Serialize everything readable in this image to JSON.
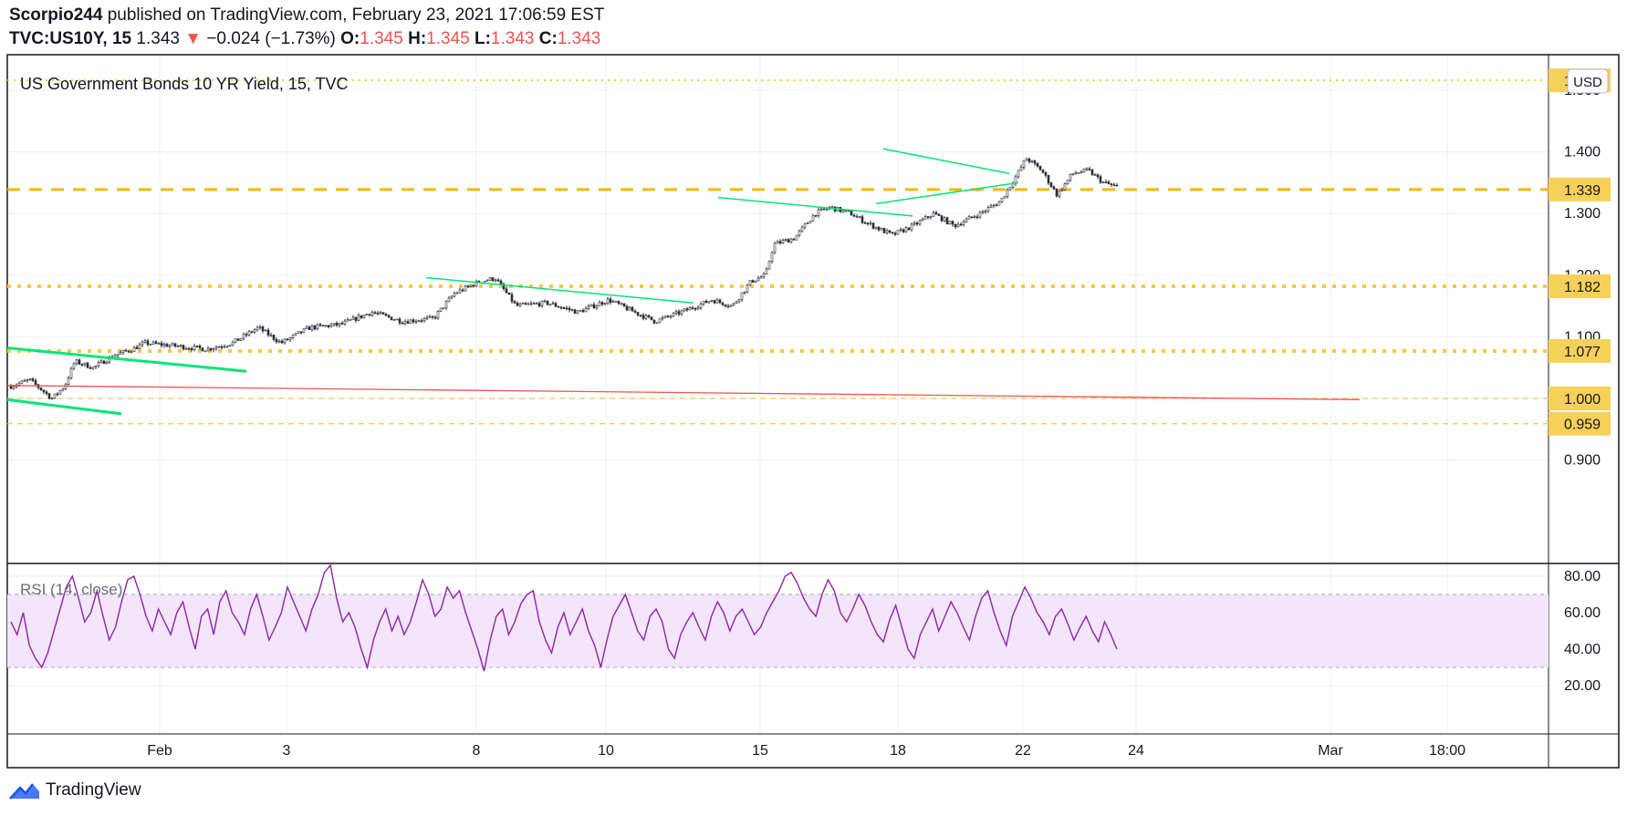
{
  "header": {
    "author": "Scorpio244",
    "published": "published on TradingView.com, February 23, 2021 17:06:59 EST",
    "symbol": "TVC:US10Y, 15",
    "last": "1.343",
    "change": "−0.024 (−1.73%)",
    "o_label": "O:",
    "o_value": "1.345",
    "h_label": "H:",
    "h_value": "1.345",
    "l_label": "L:",
    "l_value": "1.343",
    "c_label": "C:",
    "c_value": "1.343"
  },
  "footer": {
    "brand": "TradingView"
  },
  "colors": {
    "candle": "#2a2e39",
    "gold": "#f7c843",
    "gold_dash": "#f0b90b",
    "green": "#00e676",
    "red": "#ef5350",
    "rsi_line": "#8e24aa",
    "rsi_band": "#f3e5fc",
    "grid": "#eceff3",
    "axis_text": "#131722",
    "label_bg": "#f7d05a"
  },
  "chart_data": [
    {
      "type": "candlestick",
      "title": "US Government Bonds 10 YR Yield, 15, TVC",
      "currency": "USD",
      "ylim": [
        0.83,
        1.54
      ],
      "y_ticks": [
        "0.900",
        "1.000",
        "1.100",
        "1.200",
        "1.300",
        "1.400",
        "1.500"
      ],
      "x_ticks": [
        "Feb",
        "3",
        "8",
        "10",
        "15",
        "18",
        "22",
        "24",
        "Mar",
        "18:00"
      ],
      "price_path": [
        [
          0,
          1.02
        ],
        [
          18,
          1.03
        ],
        [
          40,
          1.0
        ],
        [
          52,
          1.02
        ],
        [
          62,
          1.06
        ],
        [
          80,
          1.05
        ],
        [
          100,
          1.07
        ],
        [
          118,
          1.08
        ],
        [
          130,
          1.09
        ],
        [
          160,
          1.085
        ],
        [
          190,
          1.08
        ],
        [
          215,
          1.09
        ],
        [
          240,
          1.115
        ],
        [
          262,
          1.09
        ],
        [
          290,
          1.115
        ],
        [
          320,
          1.12
        ],
        [
          350,
          1.14
        ],
        [
          380,
          1.125
        ],
        [
          410,
          1.13
        ],
        [
          430,
          1.17
        ],
        [
          455,
          1.19
        ],
        [
          470,
          1.195
        ],
        [
          490,
          1.15
        ],
        [
          520,
          1.155
        ],
        [
          550,
          1.14
        ],
        [
          580,
          1.16
        ],
        [
          605,
          1.14
        ],
        [
          625,
          1.125
        ],
        [
          650,
          1.14
        ],
        [
          680,
          1.16
        ],
        [
          700,
          1.15
        ],
        [
          718,
          1.19
        ],
        [
          732,
          1.2
        ],
        [
          740,
          1.25
        ],
        [
          760,
          1.26
        ],
        [
          780,
          1.3
        ],
        [
          795,
          1.31
        ],
        [
          815,
          1.3
        ],
        [
          830,
          1.285
        ],
        [
          855,
          1.265
        ],
        [
          875,
          1.28
        ],
        [
          895,
          1.3
        ],
        [
          915,
          1.28
        ],
        [
          940,
          1.3
        ],
        [
          960,
          1.32
        ],
        [
          975,
          1.36
        ],
        [
          985,
          1.39
        ],
        [
          1000,
          1.37
        ],
        [
          1015,
          1.33
        ],
        [
          1030,
          1.365
        ],
        [
          1045,
          1.37
        ],
        [
          1060,
          1.35
        ],
        [
          1073,
          1.343
        ]
      ],
      "horizontal_levels": [
        {
          "value": 1.516,
          "label": "1.516",
          "style": "dotted-fine"
        },
        {
          "value": 1.339,
          "label": "1.339",
          "style": "dashed"
        },
        {
          "value": 1.182,
          "label": "1.182",
          "style": "dotted-bold"
        },
        {
          "value": 1.077,
          "label": "1.077",
          "style": "dotted-bold"
        },
        {
          "value": 1.0,
          "label": "1.000",
          "style": "dashed-thin"
        },
        {
          "value": 0.959,
          "label": "0.959",
          "style": "dashed-thin"
        }
      ],
      "trendlines": [
        {
          "color": "red",
          "from": [
            8,
            1.021
          ],
          "to": [
            1490,
            0.998
          ]
        },
        {
          "color": "green",
          "width": 3,
          "from": [
            8,
            1.082
          ],
          "to": [
            270,
            1.044
          ]
        },
        {
          "color": "green",
          "width": 3,
          "from": [
            8,
            0.998
          ],
          "to": [
            133,
            0.975
          ]
        },
        {
          "color": "green",
          "width": 1.5,
          "from": [
            467,
            1.196
          ],
          "to": [
            760,
            1.155
          ]
        },
        {
          "color": "green",
          "width": 1.5,
          "from": [
            787,
            1.326
          ],
          "to": [
            1000,
            1.296
          ]
        },
        {
          "color": "green",
          "width": 1.5,
          "from": [
            968,
            1.405
          ],
          "to": [
            1106,
            1.365
          ]
        },
        {
          "color": "green",
          "width": 1.5,
          "from": [
            960,
            1.316
          ],
          "to": [
            1116,
            1.35
          ]
        }
      ]
    },
    {
      "type": "line",
      "title": "RSI (14, close)",
      "ylim": [
        15,
        90
      ],
      "y_ticks": [
        "20.00",
        "40.00",
        "60.00",
        "80.00"
      ],
      "band": [
        30,
        70
      ],
      "series": [
        {
          "values": [
            55,
            48,
            60,
            42,
            35,
            30,
            38,
            50,
            62,
            74,
            80,
            68,
            55,
            60,
            72,
            58,
            45,
            52,
            66,
            78,
            80,
            70,
            58,
            50,
            62,
            55,
            48,
            60,
            66,
            52,
            40,
            58,
            62,
            48,
            66,
            72,
            60,
            55,
            48,
            62,
            70,
            58,
            45,
            52,
            60,
            74,
            66,
            58,
            50,
            62,
            70,
            82,
            86,
            68,
            55,
            60,
            52,
            40,
            30,
            45,
            55,
            62,
            50,
            58,
            48,
            55,
            66,
            78,
            70,
            58,
            62,
            74,
            68,
            72,
            60,
            50,
            40,
            28,
            45,
            58,
            62,
            48,
            55,
            65,
            70,
            72,
            55,
            45,
            38,
            52,
            60,
            48,
            55,
            62,
            50,
            42,
            30,
            45,
            58,
            64,
            70,
            60,
            50,
            45,
            58,
            62,
            55,
            40,
            35,
            48,
            55,
            60,
            52,
            45,
            58,
            66,
            60,
            50,
            58,
            62,
            55,
            48,
            52,
            60,
            66,
            72,
            80,
            82,
            76,
            68,
            62,
            58,
            70,
            78,
            72,
            60,
            55,
            62,
            70,
            64,
            55,
            48,
            44,
            56,
            64,
            52,
            40,
            35,
            48,
            55,
            62,
            50,
            58,
            66,
            60,
            52,
            45,
            58,
            68,
            72,
            60,
            50,
            42,
            58,
            66,
            74,
            68,
            60,
            55,
            48,
            58,
            62,
            54,
            45,
            52,
            58,
            50,
            44,
            55,
            48,
            40
          ]
        }
      ]
    }
  ]
}
